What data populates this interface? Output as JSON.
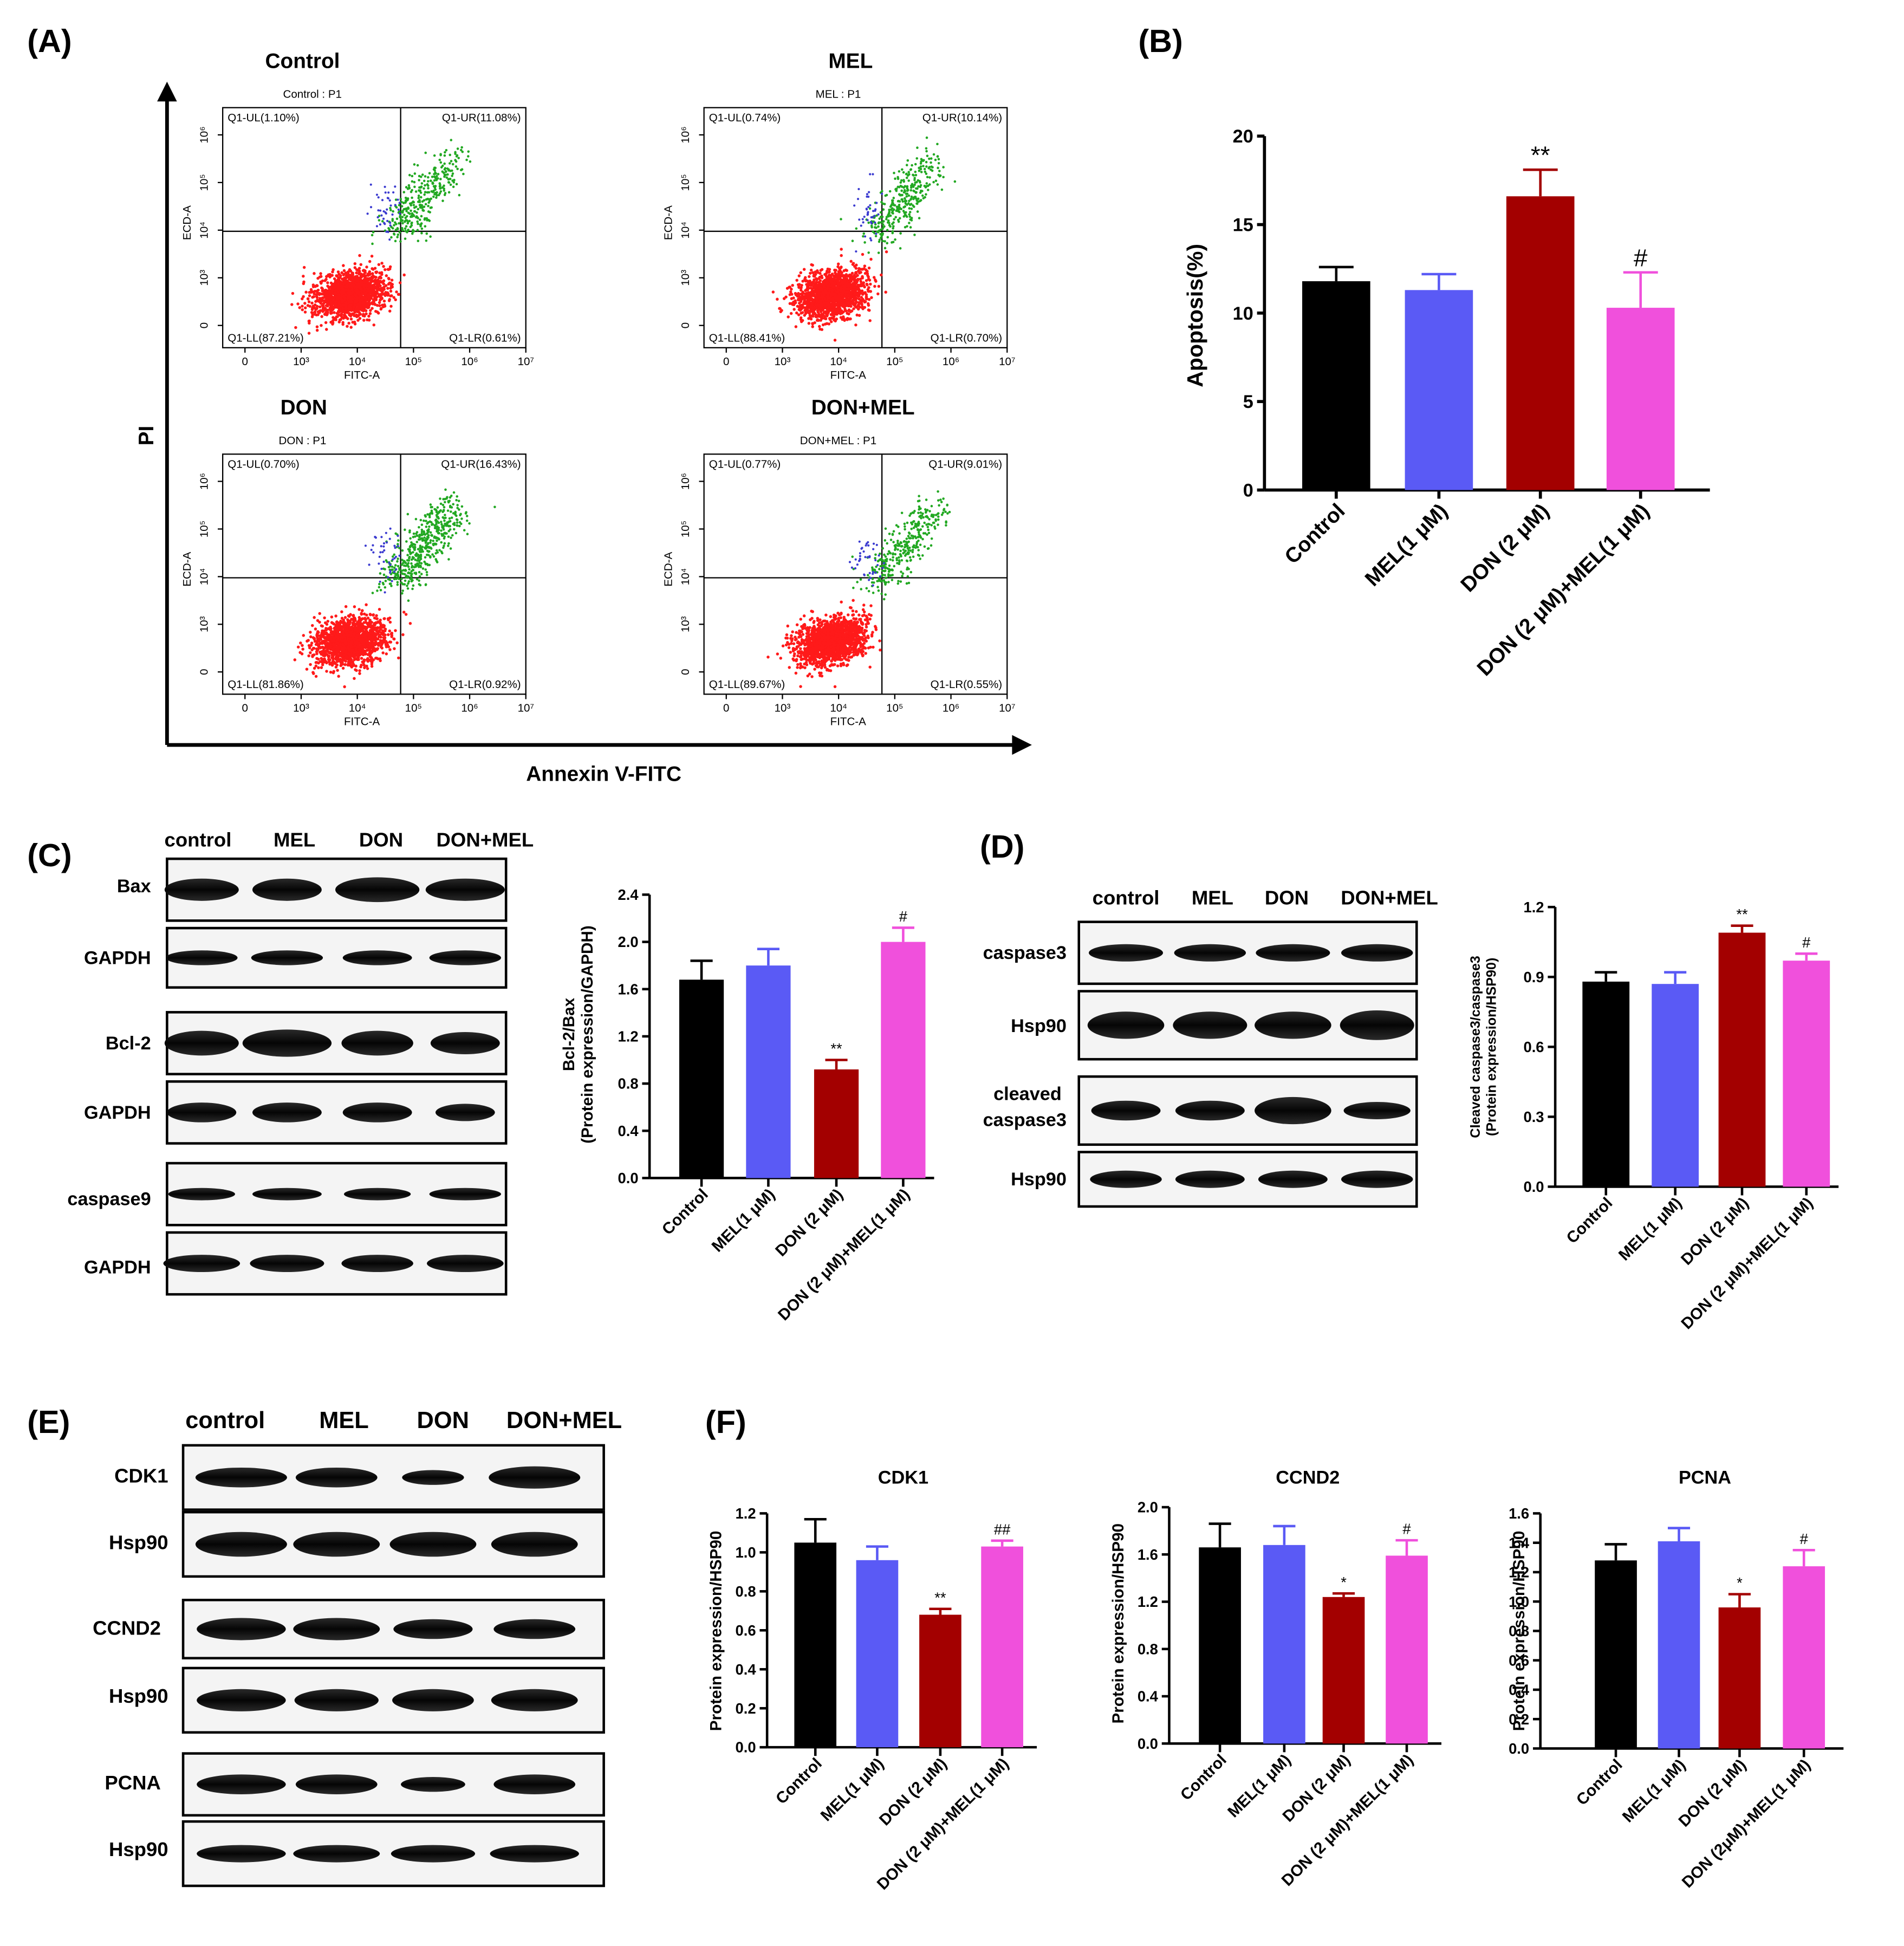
{
  "panels": {
    "a": "(A)",
    "b": "(B)",
    "c": "(C)",
    "d": "(D)",
    "e": "(E)",
    "f": "(F)"
  },
  "colors": {
    "black": "#000000",
    "blue": "#5a5af5",
    "darkred": "#a30000",
    "pink": "#f050dc",
    "flow_red": "#ff1a1a",
    "flow_green": "#22a822",
    "flow_blue": "#3b3bd0"
  },
  "flow": {
    "y_label": "PI",
    "x_label": "Annexin V-FITC",
    "x_axis_name": "FITC-A",
    "y_axis_name": "ECD-A",
    "x_ticks": [
      "0",
      "10³",
      "10⁴",
      "10⁵",
      "10⁶",
      "10⁷"
    ],
    "y_ticks": [
      "0",
      "10³",
      "10⁴",
      "10⁵",
      "10⁶"
    ],
    "plots": [
      {
        "title": "Control",
        "subtitle": "Control : P1",
        "ul": "Q1-UL(1.10%)",
        "ur": "Q1-UR(11.08%)",
        "ll": "Q1-LL(87.21%)",
        "lr": "Q1-LR(0.61%)"
      },
      {
        "title": "MEL",
        "subtitle": "MEL : P1",
        "ul": "Q1-UL(0.74%)",
        "ur": "Q1-UR(10.14%)",
        "ll": "Q1-LL(88.41%)",
        "lr": "Q1-LR(0.70%)"
      },
      {
        "title": "DON",
        "subtitle": "DON : P1",
        "ul": "Q1-UL(0.70%)",
        "ur": "Q1-UR(16.43%)",
        "ll": "Q1-LL(81.86%)",
        "lr": "Q1-LR(0.92%)"
      },
      {
        "title": "DON+MEL",
        "subtitle": "DON+MEL : P1",
        "ul": "Q1-UL(0.77%)",
        "ur": "Q1-UR(9.01%)",
        "ll": "Q1-LL(89.67%)",
        "lr": "Q1-LR(0.55%)"
      }
    ]
  },
  "blots": {
    "c": {
      "headers": [
        "control",
        "MEL",
        "DON",
        "DON+MEL"
      ],
      "rows": [
        "Bax",
        "GAPDH",
        "Bcl-2",
        "GAPDH",
        "caspase9",
        "GAPDH"
      ]
    },
    "d": {
      "headers": [
        "control",
        "MEL",
        "DON",
        "DON+MEL"
      ],
      "rows": [
        "caspase3",
        "Hsp90",
        "cleaved",
        "caspase3",
        "Hsp90"
      ]
    },
    "e": {
      "headers": [
        "control",
        "MEL",
        "DON",
        "DON+MEL"
      ],
      "rows": [
        "CDK1",
        "Hsp90",
        "CCND2",
        "Hsp90",
        "PCNA",
        "Hsp90"
      ]
    }
  },
  "chart_data": [
    {
      "id": "B",
      "type": "bar",
      "title": "",
      "categories": [
        "Control",
        "MEL(1 μM)",
        "DON (2 μM)",
        "DON (2 μM)+MEL(1 μM)"
      ],
      "values": [
        11.8,
        11.3,
        16.6,
        10.3
      ],
      "errors": [
        0.8,
        0.9,
        1.5,
        2.0
      ],
      "marks": [
        "",
        "",
        "**",
        "#"
      ],
      "ylabel": "Apoptosis(%)",
      "ylim": [
        0,
        20
      ],
      "yticks": [
        "0",
        "5",
        "10",
        "15",
        "20"
      ]
    },
    {
      "id": "C",
      "type": "bar",
      "title": "",
      "categories": [
        "Control",
        "MEL(1 μM)",
        "DON (2 μM)",
        "DON (2 μM)+MEL(1 μM)"
      ],
      "values": [
        1.68,
        1.8,
        0.92,
        2.0
      ],
      "errors": [
        0.16,
        0.14,
        0.08,
        0.12
      ],
      "marks": [
        "",
        "",
        "**",
        "#"
      ],
      "ylabel": "Bcl-2/Bax",
      "ylabel2": "(Protein expression/GAPDH)",
      "ylim": [
        0,
        2.4
      ],
      "yticks": [
        "0.0",
        "0.4",
        "0.8",
        "1.2",
        "1.6",
        "2.0",
        "2.4"
      ]
    },
    {
      "id": "D",
      "type": "bar",
      "title": "",
      "categories": [
        "Control",
        "MEL(1 μM)",
        "DON (2 μM)",
        "DON (2 μM)+MEL(1 μM)"
      ],
      "values": [
        0.88,
        0.87,
        1.09,
        0.97
      ],
      "errors": [
        0.04,
        0.05,
        0.03,
        0.03
      ],
      "marks": [
        "",
        "",
        "**",
        "#"
      ],
      "ylabel": "Cleaved caspase3/caspase3",
      "ylabel2": "(Protein expression/HSP90)",
      "ylim": [
        0,
        1.2
      ],
      "yticks": [
        "0.0",
        "0.3",
        "0.6",
        "0.9",
        "1.2"
      ]
    },
    {
      "id": "F1",
      "type": "bar",
      "title": "CDK1",
      "categories": [
        "Control",
        "MEL(1 μM)",
        "DON (2 μM)",
        "DON (2 μM)+MEL(1 μM)"
      ],
      "values": [
        1.05,
        0.96,
        0.68,
        1.03
      ],
      "errors": [
        0.12,
        0.07,
        0.03,
        0.03
      ],
      "marks": [
        "",
        "",
        "**",
        "##"
      ],
      "ylabel": "Protein expression/HSP90",
      "ylim": [
        0,
        1.2
      ],
      "yticks": [
        "0.0",
        "0.2",
        "0.4",
        "0.6",
        "0.8",
        "1.0",
        "1.2"
      ]
    },
    {
      "id": "F2",
      "type": "bar",
      "title": "CCND2",
      "categories": [
        "Control",
        "MEL(1 μM)",
        "DON (2 μM)",
        "DON (2 μM)+MEL(1 μM)"
      ],
      "values": [
        1.66,
        1.68,
        1.24,
        1.59
      ],
      "errors": [
        0.2,
        0.16,
        0.03,
        0.13
      ],
      "marks": [
        "",
        "",
        "*",
        "#"
      ],
      "ylabel": "Protein expression/HSP90",
      "ylim": [
        0,
        2.0
      ],
      "yticks": [
        "0.0",
        "0.4",
        "0.8",
        "1.2",
        "1.6",
        "2.0"
      ]
    },
    {
      "id": "F3",
      "type": "bar",
      "title": "PCNA",
      "categories": [
        "Control",
        "MEL(1 μM)",
        "DON (2 μM)",
        "DON (2μM)+MEL(1 μM)"
      ],
      "values": [
        1.28,
        1.41,
        0.96,
        1.24
      ],
      "errors": [
        0.11,
        0.09,
        0.09,
        0.11
      ],
      "marks": [
        "",
        "",
        "*",
        "#"
      ],
      "ylabel": "Protein expression/HSP90",
      "ylim": [
        0,
        1.6
      ],
      "yticks": [
        "0.0",
        "0.2",
        "0.4",
        "0.6",
        "0.8",
        "1.0",
        "1.2",
        "1.4",
        "1.6"
      ]
    }
  ]
}
